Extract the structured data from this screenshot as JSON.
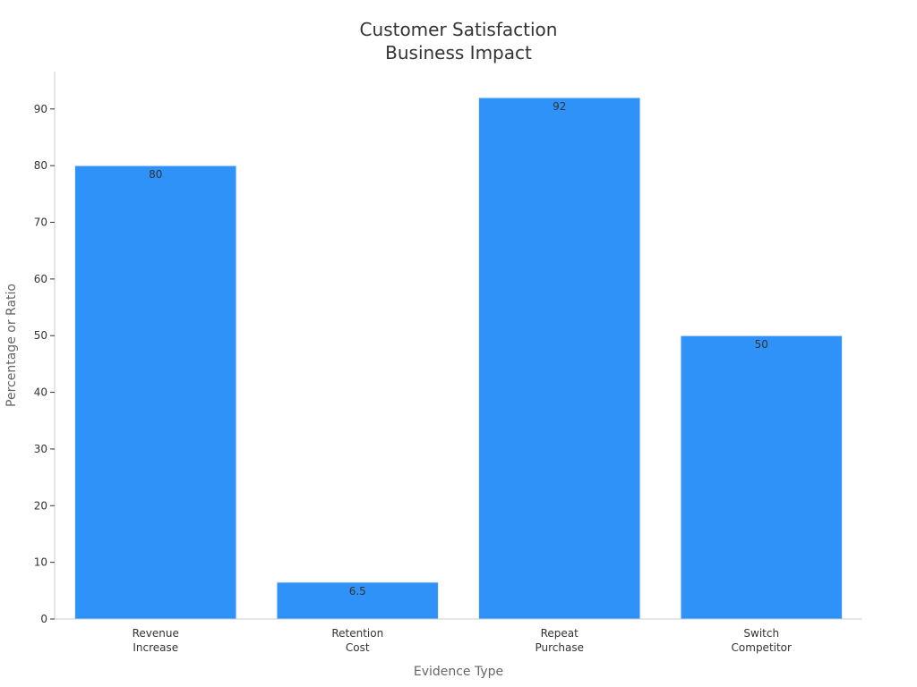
{
  "chart_data": {
    "type": "bar",
    "title_lines": [
      "Customer Satisfaction",
      "Business Impact"
    ],
    "xlabel": "Evidence Type",
    "ylabel": "Percentage or Ratio",
    "categories": [
      [
        "Revenue",
        "Increase"
      ],
      [
        "Retention",
        "Cost"
      ],
      [
        "Repeat",
        "Purchase"
      ],
      [
        "Switch",
        "Competitor"
      ]
    ],
    "values": [
      80,
      6.5,
      92,
      50
    ],
    "data_labels": [
      "80",
      "6.5",
      "92",
      "50"
    ],
    "ylim": [
      0,
      96.6
    ],
    "yticks": [
      0,
      10,
      20,
      30,
      40,
      50,
      60,
      70,
      80,
      90
    ],
    "grid": false,
    "legend": "none",
    "colors": {
      "bar": "#2f92f8",
      "bar_edge": "#e6eef8",
      "axis": "#cccccc"
    }
  }
}
